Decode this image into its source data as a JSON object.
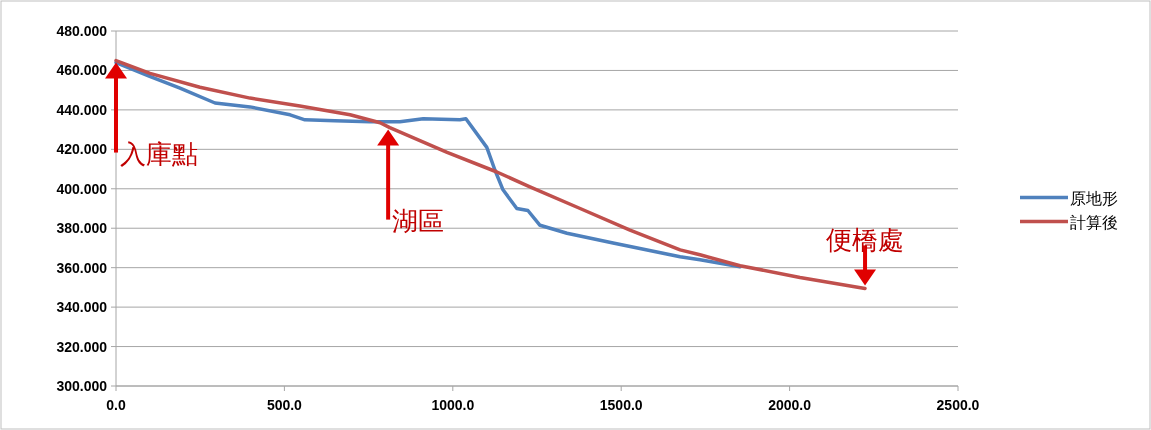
{
  "chart_data": {
    "type": "line",
    "xlim": [
      0,
      2500
    ],
    "ylim": [
      300,
      480
    ],
    "xticks": [
      {
        "value": 0,
        "label": "0.0"
      },
      {
        "value": 500,
        "label": "500.0"
      },
      {
        "value": 1000,
        "label": "1000.0"
      },
      {
        "value": 1500,
        "label": "1500.0"
      },
      {
        "value": 2000,
        "label": "2000.0"
      },
      {
        "value": 2500,
        "label": "2500.0"
      }
    ],
    "yticks": [
      {
        "value": 300,
        "label": "300.000"
      },
      {
        "value": 320,
        "label": "320.000"
      },
      {
        "value": 340,
        "label": "340.000"
      },
      {
        "value": 360,
        "label": "360.000"
      },
      {
        "value": 380,
        "label": "380.000"
      },
      {
        "value": 400,
        "label": "400.000"
      },
      {
        "value": 420,
        "label": "420.000"
      },
      {
        "value": 440,
        "label": "440.000"
      },
      {
        "value": 460,
        "label": "460.000"
      },
      {
        "value": 480,
        "label": "480.000"
      }
    ],
    "grid": "y",
    "legend": "right",
    "marker": "none",
    "line_style": "solid",
    "series": [
      {
        "name": "原地形",
        "color": "#4f81bd",
        "x": [
          0,
          100,
          190,
          294,
          398,
          517,
          561,
          650,
          754,
          843,
          912,
          1021,
          1039,
          1101,
          1125,
          1149,
          1190,
          1223,
          1259,
          1339,
          1476,
          1675,
          1734,
          1853
        ],
        "values": [
          464,
          457,
          451,
          443.5,
          441.5,
          437.5,
          435,
          434.5,
          434,
          434,
          435.5,
          435,
          435.5,
          421,
          409.5,
          399.5,
          390,
          389,
          381.5,
          377.5,
          372.5,
          365.5,
          364,
          360.5
        ]
      },
      {
        "name": "計算後",
        "color": "#c0504d",
        "x": [
          0,
          101,
          249,
          398,
          546,
          695,
          784,
          813,
          983,
          1131,
          1229,
          1378,
          1526,
          1675,
          1734,
          1853,
          2031,
          2224
        ],
        "values": [
          465,
          458.5,
          451.5,
          446,
          442,
          437.5,
          433.5,
          431,
          418.5,
          408.5,
          401,
          390,
          379,
          369,
          366.5,
          361,
          355,
          349.5
        ]
      }
    ],
    "annotations": [
      {
        "text": "入庫點",
        "x": 0,
        "y": 464
      },
      {
        "text": "湖區",
        "x": 808,
        "y": 430
      },
      {
        "text": "便橋處",
        "x": 2224,
        "y": 351
      }
    ]
  }
}
